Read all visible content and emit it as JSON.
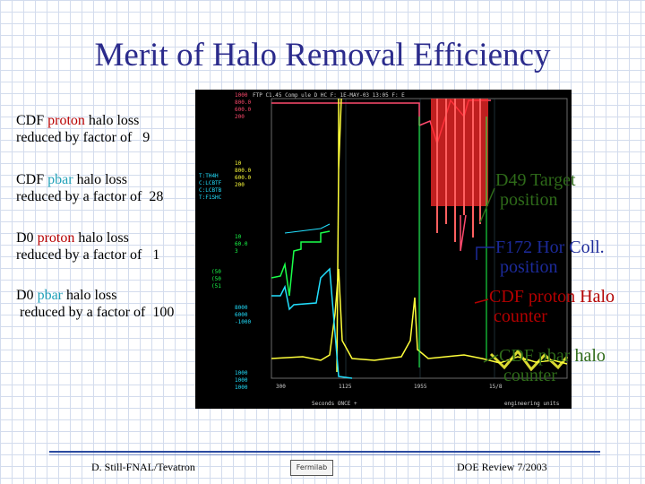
{
  "slide": {
    "title": "Merit of Halo Removal Efficiency",
    "stats": [
      {
        "line1_pre": "CDF ",
        "line1_hl": "proton",
        "line1_post": " halo loss",
        "line2": "reduced by factor of   9"
      },
      {
        "line1_pre": "CDF ",
        "line1_hl": "pbar",
        "line1_post": " halo loss",
        "line2": "reduced by a factor of  28"
      },
      {
        "line1_pre": "D0 ",
        "line1_hl": "proton",
        "line1_post": " halo loss",
        "line2": "reduced by a factor of   1"
      },
      {
        "line1_pre": "D0 ",
        "line1_hl": "pbar",
        "line1_post": " halo loss",
        "line2": " reduced by a factor of  100"
      }
    ],
    "callouts": {
      "d49_line1": "D49 Target",
      "d49_line2": "position",
      "f172_line1": "F172 Hor Coll.",
      "f172_line2": "position",
      "cdf_proton_line1": "CDF proton Halo",
      "cdf_proton_line2": "counter",
      "cdf_pbar_line1": "CDF pbar halo",
      "cdf_pbar_line2": "counter"
    },
    "plot": {
      "header": "FTP  C1.45      Comp  ule    D     HC     F:   1E-MAY-03    13:05  F:   E",
      "x_ticks": [
        "300",
        "1125",
        "1955",
        "15/8"
      ],
      "x_axis_label": "Seconds   ONCE +",
      "units_label": "engineering units",
      "colors": {
        "pink": "#ff4a6e",
        "yellow": "#ffff3a",
        "green": "#1aff4a",
        "cyan": "#22e0ff",
        "red_band": "#ff2a2a",
        "grid": "#304a55"
      }
    },
    "footer": {
      "left": "D. Still-FNAL/Tevatron",
      "logo": "Fermilab",
      "right": "DOE Review 7/2003"
    }
  }
}
